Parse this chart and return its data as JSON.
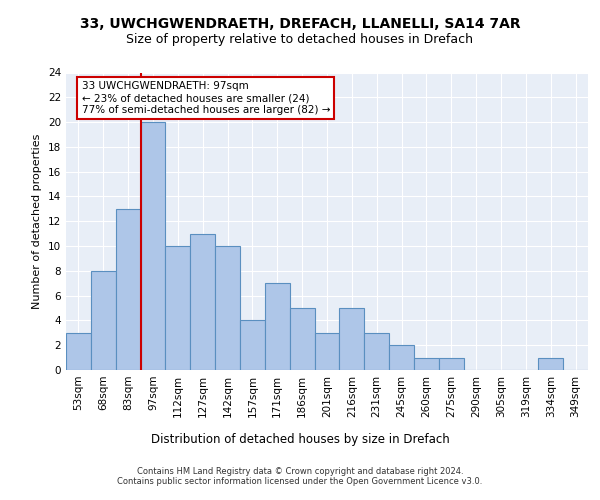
{
  "title_line1": "33, UWCHGWENDRAETH, DREFACH, LLANELLI, SA14 7AR",
  "title_line2": "Size of property relative to detached houses in Drefach",
  "xlabel": "Distribution of detached houses by size in Drefach",
  "ylabel": "Number of detached properties",
  "footer_line1": "Contains HM Land Registry data © Crown copyright and database right 2024.",
  "footer_line2": "Contains public sector information licensed under the Open Government Licence v3.0.",
  "bar_labels": [
    "53sqm",
    "68sqm",
    "83sqm",
    "97sqm",
    "112sqm",
    "127sqm",
    "142sqm",
    "157sqm",
    "171sqm",
    "186sqm",
    "201sqm",
    "216sqm",
    "231sqm",
    "245sqm",
    "260sqm",
    "275sqm",
    "290sqm",
    "305sqm",
    "319sqm",
    "334sqm",
    "349sqm"
  ],
  "bar_values": [
    3,
    8,
    13,
    20,
    10,
    11,
    10,
    4,
    7,
    5,
    3,
    5,
    3,
    2,
    1,
    1,
    0,
    0,
    0,
    1,
    0
  ],
  "bar_color": "#aec6e8",
  "bar_edge_color": "#5a8fc0",
  "highlight_bar_index": 3,
  "highlight_line_color": "#cc0000",
  "annotation_text": "33 UWCHGWENDRAETH: 97sqm\n← 23% of detached houses are smaller (24)\n77% of semi-detached houses are larger (82) →",
  "annotation_box_color": "#ffffff",
  "annotation_box_edge_color": "#cc0000",
  "ylim": [
    0,
    24
  ],
  "yticks": [
    0,
    2,
    4,
    6,
    8,
    10,
    12,
    14,
    16,
    18,
    20,
    22,
    24
  ],
  "axes_background": "#e8eef7",
  "title1_fontsize": 10,
  "title2_fontsize": 9,
  "ylabel_fontsize": 8,
  "xlabel_fontsize": 8.5,
  "tick_fontsize": 7.5,
  "footer_fontsize": 6,
  "annotation_fontsize": 7.5
}
